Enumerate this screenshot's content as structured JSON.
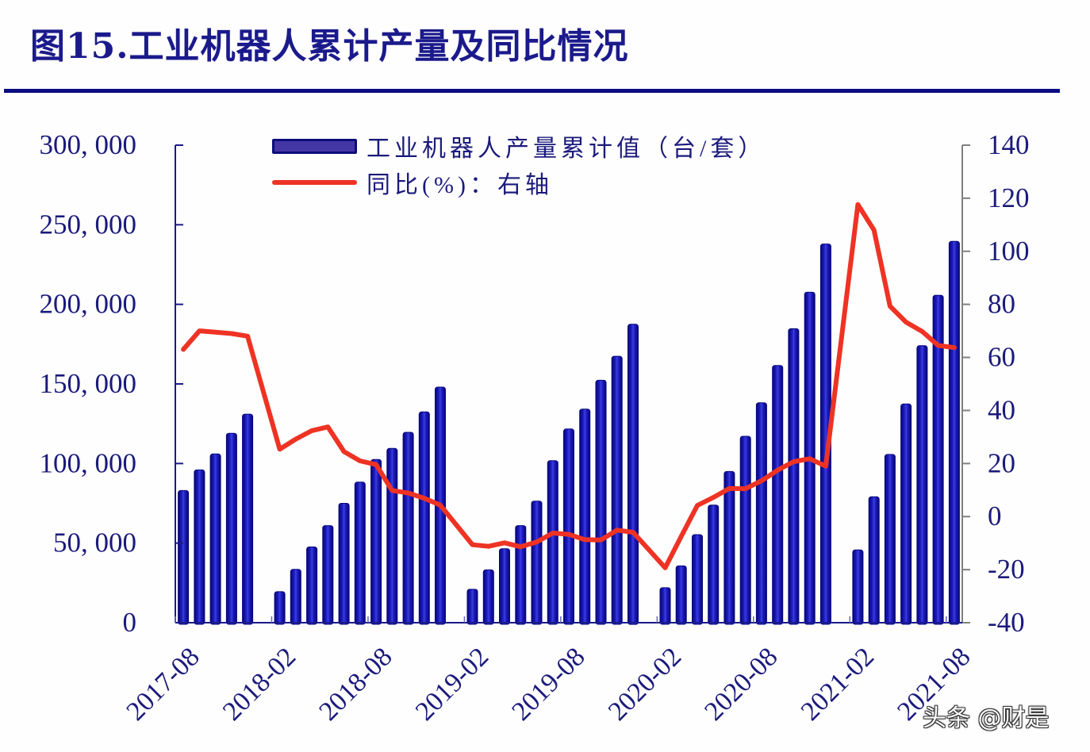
{
  "title": "图15.工业机器人累计产量及同比情况",
  "watermark": "头条 @财是",
  "legend": {
    "bar_label": "工业机器人产量累计值（台/套）",
    "line_label": "同比(%)：右轴",
    "bar_icon": "bar-swatch",
    "line_icon": "line-swatch"
  },
  "colors": {
    "title": "#1b1a8c",
    "title_rule": "#0b0b82",
    "text": "#1b1a7c",
    "bar_dark": "#07077a",
    "bar_mid": "#1a1ab8",
    "bar_light": "#3c3ce2",
    "legend_bar_fill": "#4536a6",
    "line": "#ee3324",
    "axis_left": "#1a1a8a",
    "axis_right": "#808080",
    "axis_minor_tick": "#6a6ac0"
  },
  "chart_data": {
    "type": "bar",
    "title": "图15.工业机器人累计产量及同比情况",
    "xlabel": "",
    "ylabel": "工业机器人产量累计值（台/套）",
    "y2label": "同比(%)",
    "ylim": [
      0,
      300000
    ],
    "y2lim": [
      -40,
      140
    ],
    "grid": false,
    "legend_position": "top-center",
    "yticks": [
      0,
      50000,
      100000,
      150000,
      200000,
      250000,
      300000
    ],
    "ytick_labels": [
      "0",
      "50, 000",
      "100, 000",
      "150, 000",
      "200, 000",
      "250, 000",
      "300, 000"
    ],
    "y2ticks": [
      -40,
      -20,
      0,
      20,
      40,
      60,
      80,
      100,
      120,
      140
    ],
    "y2tick_labels": [
      "-40",
      "-20",
      "0",
      "20",
      "40",
      "60",
      "80",
      "100",
      "120",
      "140"
    ],
    "xtick_labels": [
      "2017-08",
      "2018-02",
      "2018-08",
      "2019-02",
      "2019-08",
      "2020-02",
      "2020-08",
      "2021-02",
      "2021-08"
    ],
    "categories": [
      "2017-08",
      "2017-09",
      "2017-10",
      "2017-11",
      "2017-12",
      "2018-01",
      "2018-02",
      "2018-03",
      "2018-04",
      "2018-05",
      "2018-06",
      "2018-07",
      "2018-08",
      "2018-09",
      "2018-10",
      "2018-11",
      "2018-12",
      "2019-01",
      "2019-02",
      "2019-03",
      "2019-04",
      "2019-05",
      "2019-06",
      "2019-07",
      "2019-08",
      "2019-09",
      "2019-10",
      "2019-11",
      "2019-12",
      "2020-01",
      "2020-02",
      "2020-03",
      "2020-04",
      "2020-05",
      "2020-06",
      "2020-07",
      "2020-08",
      "2020-09",
      "2020-10",
      "2020-11",
      "2020-12",
      "2021-01",
      "2021-02",
      "2021-03",
      "2021-04",
      "2021-05",
      "2021-06",
      "2021-07",
      "2021-08"
    ],
    "series": [
      {
        "name": "工业机器人产量累计值（台/套）",
        "type": "bar",
        "axis": "left",
        "values": [
          83000,
          96000,
          106000,
          119000,
          131000,
          null,
          19500,
          33500,
          47600,
          61000,
          75000,
          88300,
          102500,
          109500,
          119600,
          132400,
          148000,
          null,
          21000,
          33200,
          46500,
          61000,
          76400,
          101800,
          121700,
          134200,
          152300,
          167400,
          187500,
          null,
          22000,
          35700,
          55300,
          73900,
          95000,
          117100,
          138200,
          161600,
          184700,
          207600,
          237900,
          null,
          45700,
          79100,
          105700,
          137400,
          174000,
          205700,
          239600
        ]
      },
      {
        "name": "同比(%)：右轴",
        "type": "line",
        "axis": "right",
        "values": [
          63,
          70,
          69.5,
          69,
          68,
          null,
          25.4,
          29.2,
          32.4,
          33.8,
          24.5,
          21,
          19.6,
          9.8,
          8.9,
          6.9,
          4.3,
          null,
          -10.6,
          -11.2,
          -9.9,
          -11.4,
          -9.6,
          -6.2,
          -6.7,
          -8.7,
          -8.8,
          -5.1,
          -5.9,
          null,
          -19.3,
          -7.5,
          4.2,
          7.2,
          10.6,
          10.5,
          13.5,
          17.5,
          20.7,
          21.8,
          19,
          null,
          117.6,
          108,
          79.3,
          73.3,
          69.8,
          64.5,
          63.7
        ]
      }
    ]
  }
}
